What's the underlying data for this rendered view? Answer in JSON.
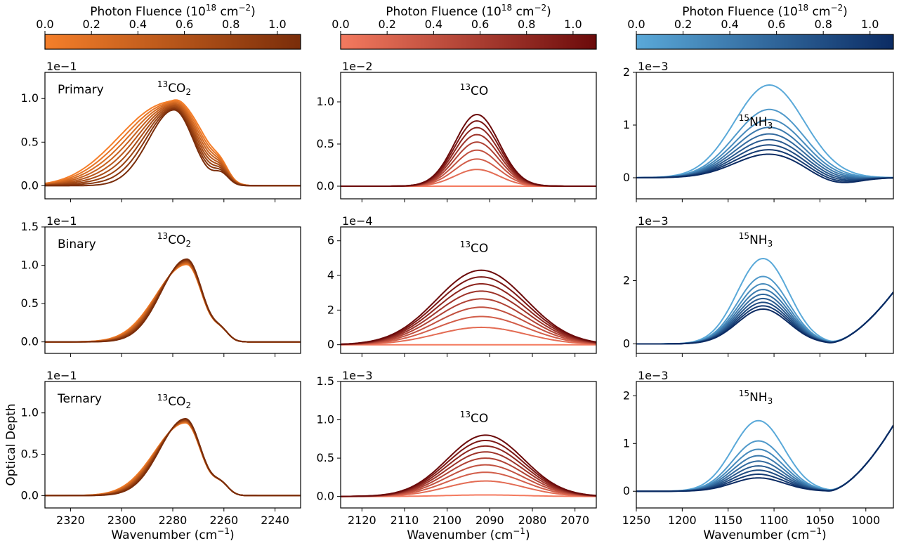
{
  "colorbar_title_prefix": "Photon Fluence (10",
  "colorbar_title_exp": "18",
  "colorbar_title_unit": " cm",
  "colorbar_title_unit_exp": "−2",
  "colorbar_title_close": ")",
  "colorbar_ticks": [
    "0.0",
    "0.2",
    "0.4",
    "0.6",
    "0.8",
    "1.0"
  ],
  "xlabel_text": "Wavenumber (cm",
  "xlabel_exp": "−1",
  "xlabel_close": ")",
  "ylabel": "Optical Depth",
  "row_labels": [
    "Primary",
    "Binary",
    "Ternary"
  ],
  "columns": [
    {
      "species_sup": "13",
      "species_main": "CO",
      "species_sub": "2",
      "colors": [
        "#f57f2a",
        "#7a2d0a"
      ]
    },
    {
      "species_sup": "13",
      "species_main": "CO",
      "species_sub": "",
      "colors": [
        "#f47a5f",
        "#6b0a0a"
      ]
    },
    {
      "species_sup": "15",
      "species_main": "NH",
      "species_sub": "3",
      "colors": [
        "#5aa9d9",
        "#0b2b63"
      ]
    }
  ],
  "chart_data": [
    {
      "type": "line",
      "row": "Primary",
      "species": "13CO2",
      "multiplier": "1e−1",
      "xlim": [
        2330,
        2230
      ],
      "ylim": [
        -0.15,
        1.3
      ],
      "xticks": [
        2320,
        2300,
        2280,
        2260,
        2240
      ],
      "yticks": [
        0.0,
        0.5,
        1.0
      ],
      "ytick_labels": [
        "0.0",
        "0.5",
        "1.0"
      ],
      "center": 2279.5,
      "peak": 0.87,
      "first_peak": 0.86,
      "n_curves": 9
    },
    {
      "type": "line",
      "row": "Primary",
      "species": "13CO",
      "multiplier": "1e−2",
      "xlim": [
        2125,
        2065
      ],
      "ylim": [
        -0.15,
        1.35
      ],
      "xticks": [
        2120,
        2110,
        2100,
        2090,
        2080,
        2070
      ],
      "yticks": [
        0.0,
        0.5,
        1.0
      ],
      "ytick_labels": [
        "0.0",
        "0.5",
        "1.0"
      ],
      "center": 2093,
      "peak": 0.85,
      "first_peak": 0.0,
      "n_curves": 9
    },
    {
      "type": "line",
      "row": "Primary",
      "species": "15NH3",
      "multiplier": "1e−3",
      "xlim": [
        1250,
        970
      ],
      "ylim": [
        -0.4,
        2.0
      ],
      "xticks": [
        1250,
        1200,
        1150,
        1100,
        1050,
        1000
      ],
      "yticks": [
        0,
        1,
        2
      ],
      "ytick_labels": [
        "0",
        "1",
        "2"
      ],
      "center": 1105,
      "peak": 0.45,
      "first_peak": 1.76,
      "n_curves": 9
    },
    {
      "type": "line",
      "row": "Binary",
      "species": "13CO2",
      "multiplier": "1e−1",
      "xlim": [
        2330,
        2230
      ],
      "ylim": [
        -0.15,
        1.5
      ],
      "xticks": [
        2320,
        2300,
        2280,
        2260,
        2240
      ],
      "yticks": [
        0.0,
        0.5,
        1.0,
        1.5
      ],
      "ytick_labels": [
        "0.0",
        "0.5",
        "1.0",
        "1.5"
      ],
      "center": 2274.5,
      "peak": 1.08,
      "first_peak": 1.01,
      "n_curves": 9
    },
    {
      "type": "line",
      "row": "Binary",
      "species": "13CO",
      "multiplier": "1e−4",
      "xlim": [
        2125,
        2065
      ],
      "ylim": [
        -0.5,
        6.8
      ],
      "xticks": [
        2120,
        2110,
        2100,
        2090,
        2080,
        2070
      ],
      "yticks": [
        0,
        2,
        4,
        6
      ],
      "ytick_labels": [
        "0",
        "2",
        "4",
        "6"
      ],
      "center": 2092,
      "peak": 4.3,
      "first_peak": 0.0,
      "n_curves": 9
    },
    {
      "type": "line",
      "row": "Binary",
      "species": "15NH3",
      "multiplier": "1e−3",
      "xlim": [
        1250,
        970
      ],
      "ylim": [
        -0.3,
        3.7
      ],
      "xticks": [
        1250,
        1200,
        1150,
        1100,
        1050,
        1000
      ],
      "yticks": [
        0,
        2
      ],
      "ytick_labels": [
        "0",
        "2"
      ],
      "center": 1112,
      "peak": 1.1,
      "first_peak": 2.7,
      "n_curves": 9
    },
    {
      "type": "line",
      "row": "Ternary",
      "species": "13CO2",
      "multiplier": "1e−1",
      "xlim": [
        2330,
        2230
      ],
      "ylim": [
        -0.15,
        1.38
      ],
      "xticks": [
        2320,
        2300,
        2280,
        2260,
        2240
      ],
      "yticks": [
        0.0,
        0.5,
        1.0
      ],
      "ytick_labels": [
        "0.0",
        "0.5",
        "1.0"
      ],
      "center": 2275,
      "peak": 0.93,
      "first_peak": 0.88,
      "n_curves": 9
    },
    {
      "type": "line",
      "row": "Ternary",
      "species": "13CO",
      "multiplier": "1e−3",
      "xlim": [
        2125,
        2065
      ],
      "ylim": [
        -0.15,
        1.5
      ],
      "xticks": [
        2120,
        2110,
        2100,
        2090,
        2080,
        2070
      ],
      "yticks": [
        0.0,
        0.5,
        1.0,
        1.5
      ],
      "ytick_labels": [
        "0.0",
        "0.5",
        "1.0",
        "1.5"
      ],
      "center": 2091,
      "peak": 0.8,
      "first_peak": 0.02,
      "n_curves": 9
    },
    {
      "type": "line",
      "row": "Ternary",
      "species": "15NH3",
      "multiplier": "1e−3",
      "xlim": [
        1250,
        970
      ],
      "ylim": [
        -0.35,
        2.3
      ],
      "xticks": [
        1250,
        1200,
        1150,
        1100,
        1050,
        1000
      ],
      "yticks": [
        0,
        1,
        2
      ],
      "ytick_labels": [
        "0",
        "1",
        "2"
      ],
      "center": 1117,
      "peak": 0.28,
      "first_peak": 1.48,
      "n_curves": 9
    }
  ]
}
